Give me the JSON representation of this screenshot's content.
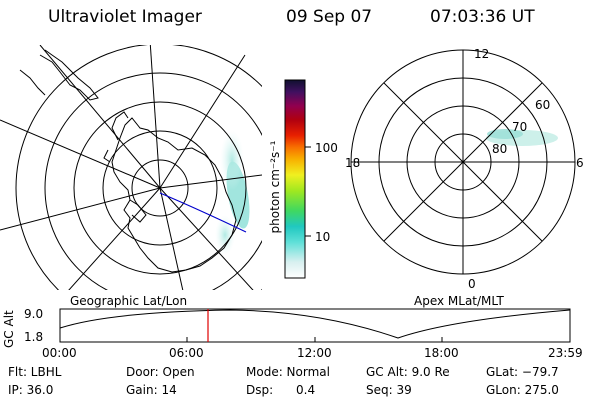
{
  "header": {
    "title": "Ultraviolet Imager",
    "date": "09 Sep 07",
    "time": "07:03:36 UT"
  },
  "colorbar": {
    "unit_label": "photon cm⁻²s⁻¹",
    "ticks": [
      "100",
      "10"
    ]
  },
  "polar_plot": {
    "mlt_labels": {
      "top": "12",
      "right": "6",
      "bottom": "0",
      "left": "18"
    },
    "lat_labels": [
      "60",
      "70",
      "80"
    ]
  },
  "map_labels": {
    "left": "Geographic Lat/Lon",
    "right": "Apex MLat/MLT"
  },
  "altitude_plot": {
    "ylabel": "GC Alt",
    "y_top": "9.0",
    "y_bottom": "1.8",
    "marker_color": "#e00000",
    "x_ticks": [
      "00:00",
      "06:00",
      "12:00",
      "18:00",
      "23:59"
    ]
  },
  "info": {
    "flt": "Flt: LBHL",
    "ip": "IP: 36.0",
    "door": "Door: Open",
    "gain": "Gain: 14",
    "mode": "Mode: Normal",
    "dsp": "Dsp:      0.4",
    "gc_alt": "GC Alt: 9.0 Re",
    "seq": "Seq: 39",
    "glat": "GLat: −79.7",
    "glon": "GLon: 275.0"
  }
}
